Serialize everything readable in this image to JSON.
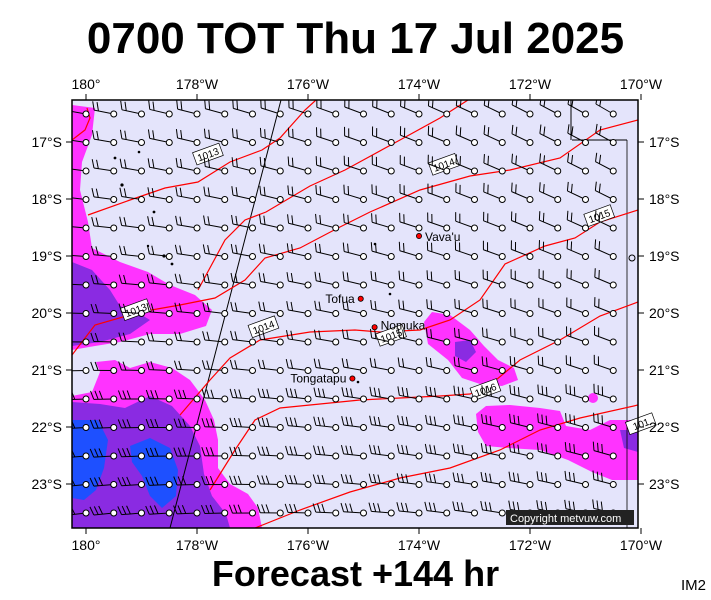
{
  "title": "0700 TOT Thu 17 Jul 2025",
  "footer": "Forecast +144 hr",
  "corner_label": "IM2",
  "copyright": "Copyright metvuw.com",
  "colors": {
    "ocean": "#e4e4fb",
    "rain_light": "#ff33ff",
    "rain_mid": "#8a2be2",
    "rain_heavy": "#1e50ff",
    "isobar": "#ff0000",
    "wind": "#000000"
  },
  "axes": {
    "lon_labels": [
      "180°",
      "178°W",
      "176°W",
      "174°W",
      "172°W",
      "170°W"
    ],
    "lat_labels": [
      "17°S",
      "18°S",
      "19°S",
      "20°S",
      "21°S",
      "22°S",
      "23°S"
    ]
  },
  "places": [
    {
      "name": "Vava'u",
      "lon": -174.0,
      "lat": -18.65
    },
    {
      "name": "Tofua",
      "lon": -175.05,
      "lat": -19.75
    },
    {
      "name": "Nomuka",
      "lon": -174.8,
      "lat": -20.25
    },
    {
      "name": "Tongatapu",
      "lon": -175.2,
      "lat": -21.15
    }
  ],
  "isobars": [
    {
      "label": "1013",
      "lon": -177.8,
      "lat": -17.22
    },
    {
      "label": "1014",
      "lon": -173.55,
      "lat": -17.4
    },
    {
      "label": "1015",
      "lon": -170.75,
      "lat": -18.3
    },
    {
      "label": "1013",
      "lon": -179.1,
      "lat": -19.95
    },
    {
      "label": "1014",
      "lon": -176.8,
      "lat": -20.25
    },
    {
      "label": "1015",
      "lon": -174.5,
      "lat": -20.4
    },
    {
      "label": "1016",
      "lon": -172.8,
      "lat": -21.35
    },
    {
      "label": "101",
      "lon": -170.0,
      "lat": -21.95
    }
  ],
  "wind_units": "knots"
}
